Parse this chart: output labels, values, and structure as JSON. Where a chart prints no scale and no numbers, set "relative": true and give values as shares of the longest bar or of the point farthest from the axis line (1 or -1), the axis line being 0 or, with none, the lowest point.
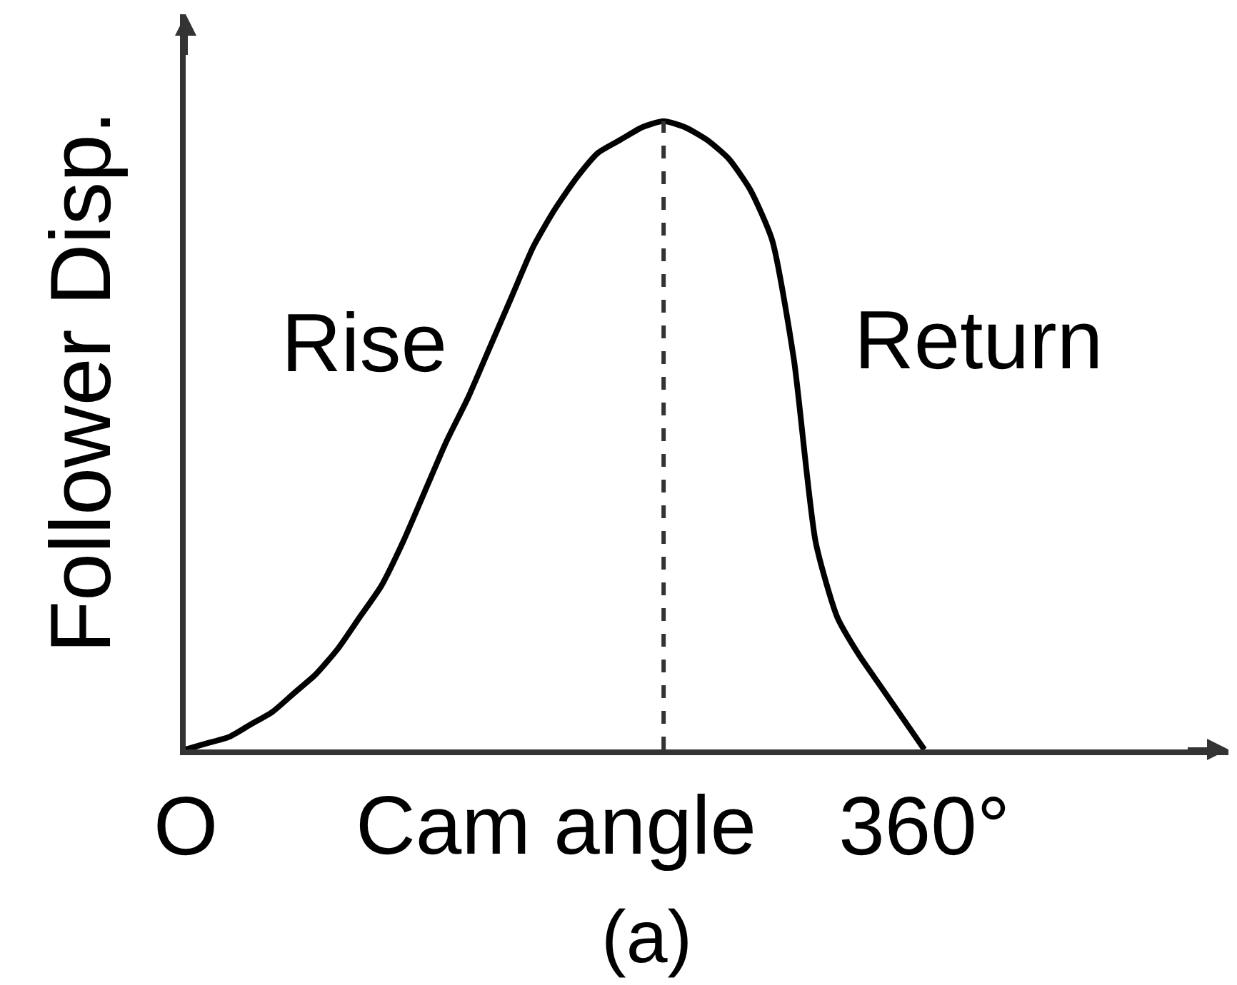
{
  "chart_data": {
    "type": "line",
    "relative": true,
    "xlabel": "Cam angle",
    "ylabel": "Follower Disp.",
    "categories": [
      "O",
      null,
      null,
      null,
      null,
      null,
      null,
      null,
      null,
      null,
      null,
      null,
      null,
      null,
      null,
      null,
      null,
      null,
      null,
      null,
      null,
      null,
      null,
      null,
      null,
      null,
      null,
      null,
      null,
      null,
      null,
      null,
      null,
      null,
      "360°",
      null,
      null,
      null,
      null,
      null,
      null,
      null,
      null,
      null,
      null,
      null,
      null,
      null,
      null
    ],
    "series": [
      {
        "color": "#000000",
        "values": [
          0,
          0.01,
          0.02,
          0.04,
          0.06,
          0.09,
          0.12,
          0.16,
          0.21,
          0.26,
          0.33,
          0.41,
          0.49,
          0.56,
          0.64,
          0.72,
          0.8,
          0.86,
          0.91,
          0.95,
          0.97,
          0.99,
          1.0,
          0.99,
          0.97,
          0.94,
          0.89,
          0.81,
          0.62,
          0.33,
          0.21,
          0.15,
          0.1,
          0.05,
          0,
          null,
          null,
          null,
          null,
          null,
          null,
          null,
          null,
          null,
          null,
          null,
          null,
          null,
          null
        ]
      }
    ],
    "annotations": [
      "Rise",
      "Return",
      "(a)"
    ]
  }
}
